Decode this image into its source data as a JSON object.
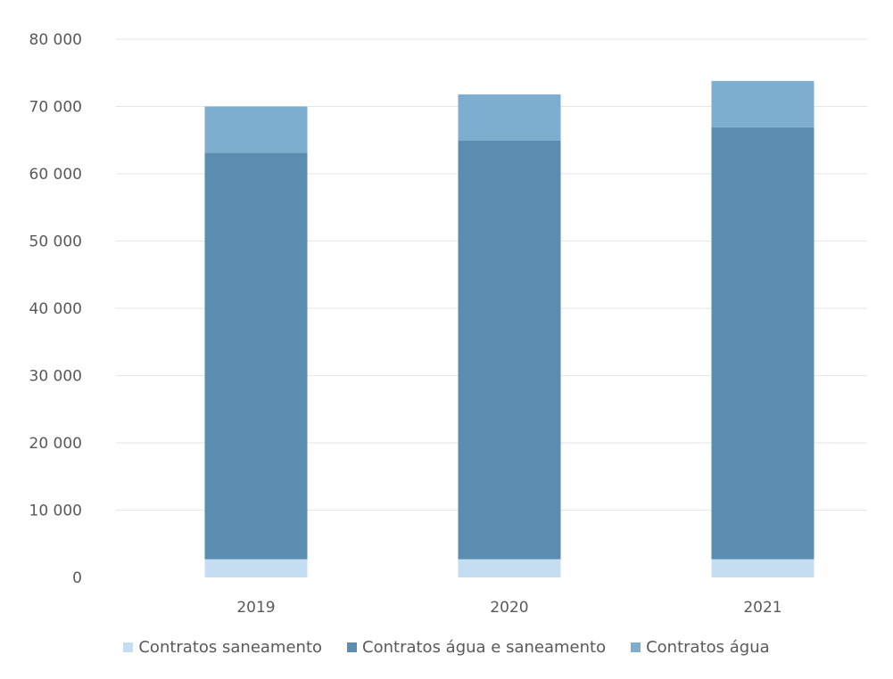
{
  "chart_data": {
    "type": "bar",
    "stacked": true,
    "categories": [
      "2019",
      "2020",
      "2021"
    ],
    "series": [
      {
        "name": "Contratos saneamento",
        "values": [
          2700,
          2700,
          2700
        ],
        "color": "#c5ddf0"
      },
      {
        "name": "Contratos água e saneamento",
        "values": [
          60400,
          62200,
          64200
        ],
        "color": "#5a8daf"
      },
      {
        "name": "Contratos água",
        "values": [
          6900,
          6900,
          6900
        ],
        "color": "#7eaecf"
      }
    ],
    "y_ticks": [
      "0",
      "10 000",
      "20 000",
      "30 000",
      "40 000",
      "50 000",
      "60 000",
      "70 000",
      "80 000"
    ],
    "ylim": [
      0,
      80000
    ],
    "grid": true,
    "legend_position": "bottom"
  }
}
